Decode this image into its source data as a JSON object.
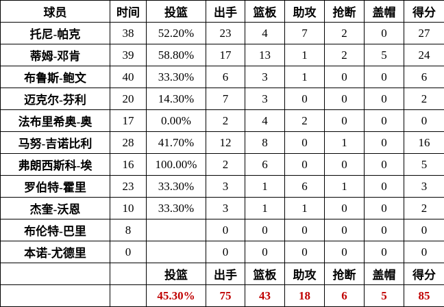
{
  "headers": [
    "球员",
    "时间",
    "投篮",
    "出手",
    "篮板",
    "助攻",
    "抢断",
    "盖帽",
    "得分"
  ],
  "rows": [
    [
      "托尼-帕克",
      "38",
      "52.20%",
      "23",
      "4",
      "7",
      "2",
      "0",
      "27"
    ],
    [
      "蒂姆-邓肯",
      "39",
      "58.80%",
      "17",
      "13",
      "1",
      "2",
      "5",
      "24"
    ],
    [
      "布鲁斯-鲍文",
      "40",
      "33.30%",
      "6",
      "3",
      "1",
      "0",
      "0",
      "6"
    ],
    [
      "迈克尔-芬利",
      "20",
      "14.30%",
      "7",
      "3",
      "0",
      "0",
      "0",
      "2"
    ],
    [
      "法布里希奥-奥",
      "17",
      "0.00%",
      "2",
      "4",
      "2",
      "0",
      "0",
      "0"
    ],
    [
      "马努-吉诺比利",
      "28",
      "41.70%",
      "12",
      "8",
      "0",
      "1",
      "0",
      "16"
    ],
    [
      "弗朗西斯科-埃",
      "16",
      "100.00%",
      "2",
      "6",
      "0",
      "0",
      "0",
      "5"
    ],
    [
      "罗伯特-霍里",
      "23",
      "33.30%",
      "3",
      "1",
      "6",
      "1",
      "0",
      "3"
    ],
    [
      "杰奎-沃恩",
      "10",
      "33.30%",
      "3",
      "1",
      "1",
      "0",
      "0",
      "2"
    ],
    [
      "布伦特-巴里",
      "8",
      "",
      "0",
      "0",
      "0",
      "0",
      "0",
      "0"
    ],
    [
      "本诺-尤德里",
      "0",
      "",
      "0",
      "0",
      "0",
      "0",
      "0",
      "0"
    ]
  ],
  "summary_headers": [
    "",
    "",
    "投篮",
    "出手",
    "篮板",
    "助攻",
    "抢断",
    "盖帽",
    "得分"
  ],
  "totals": [
    "",
    "",
    "45.30%",
    "75",
    "43",
    "18",
    "6",
    "5",
    "85"
  ],
  "colors": {
    "totals_text": "#c00000"
  }
}
